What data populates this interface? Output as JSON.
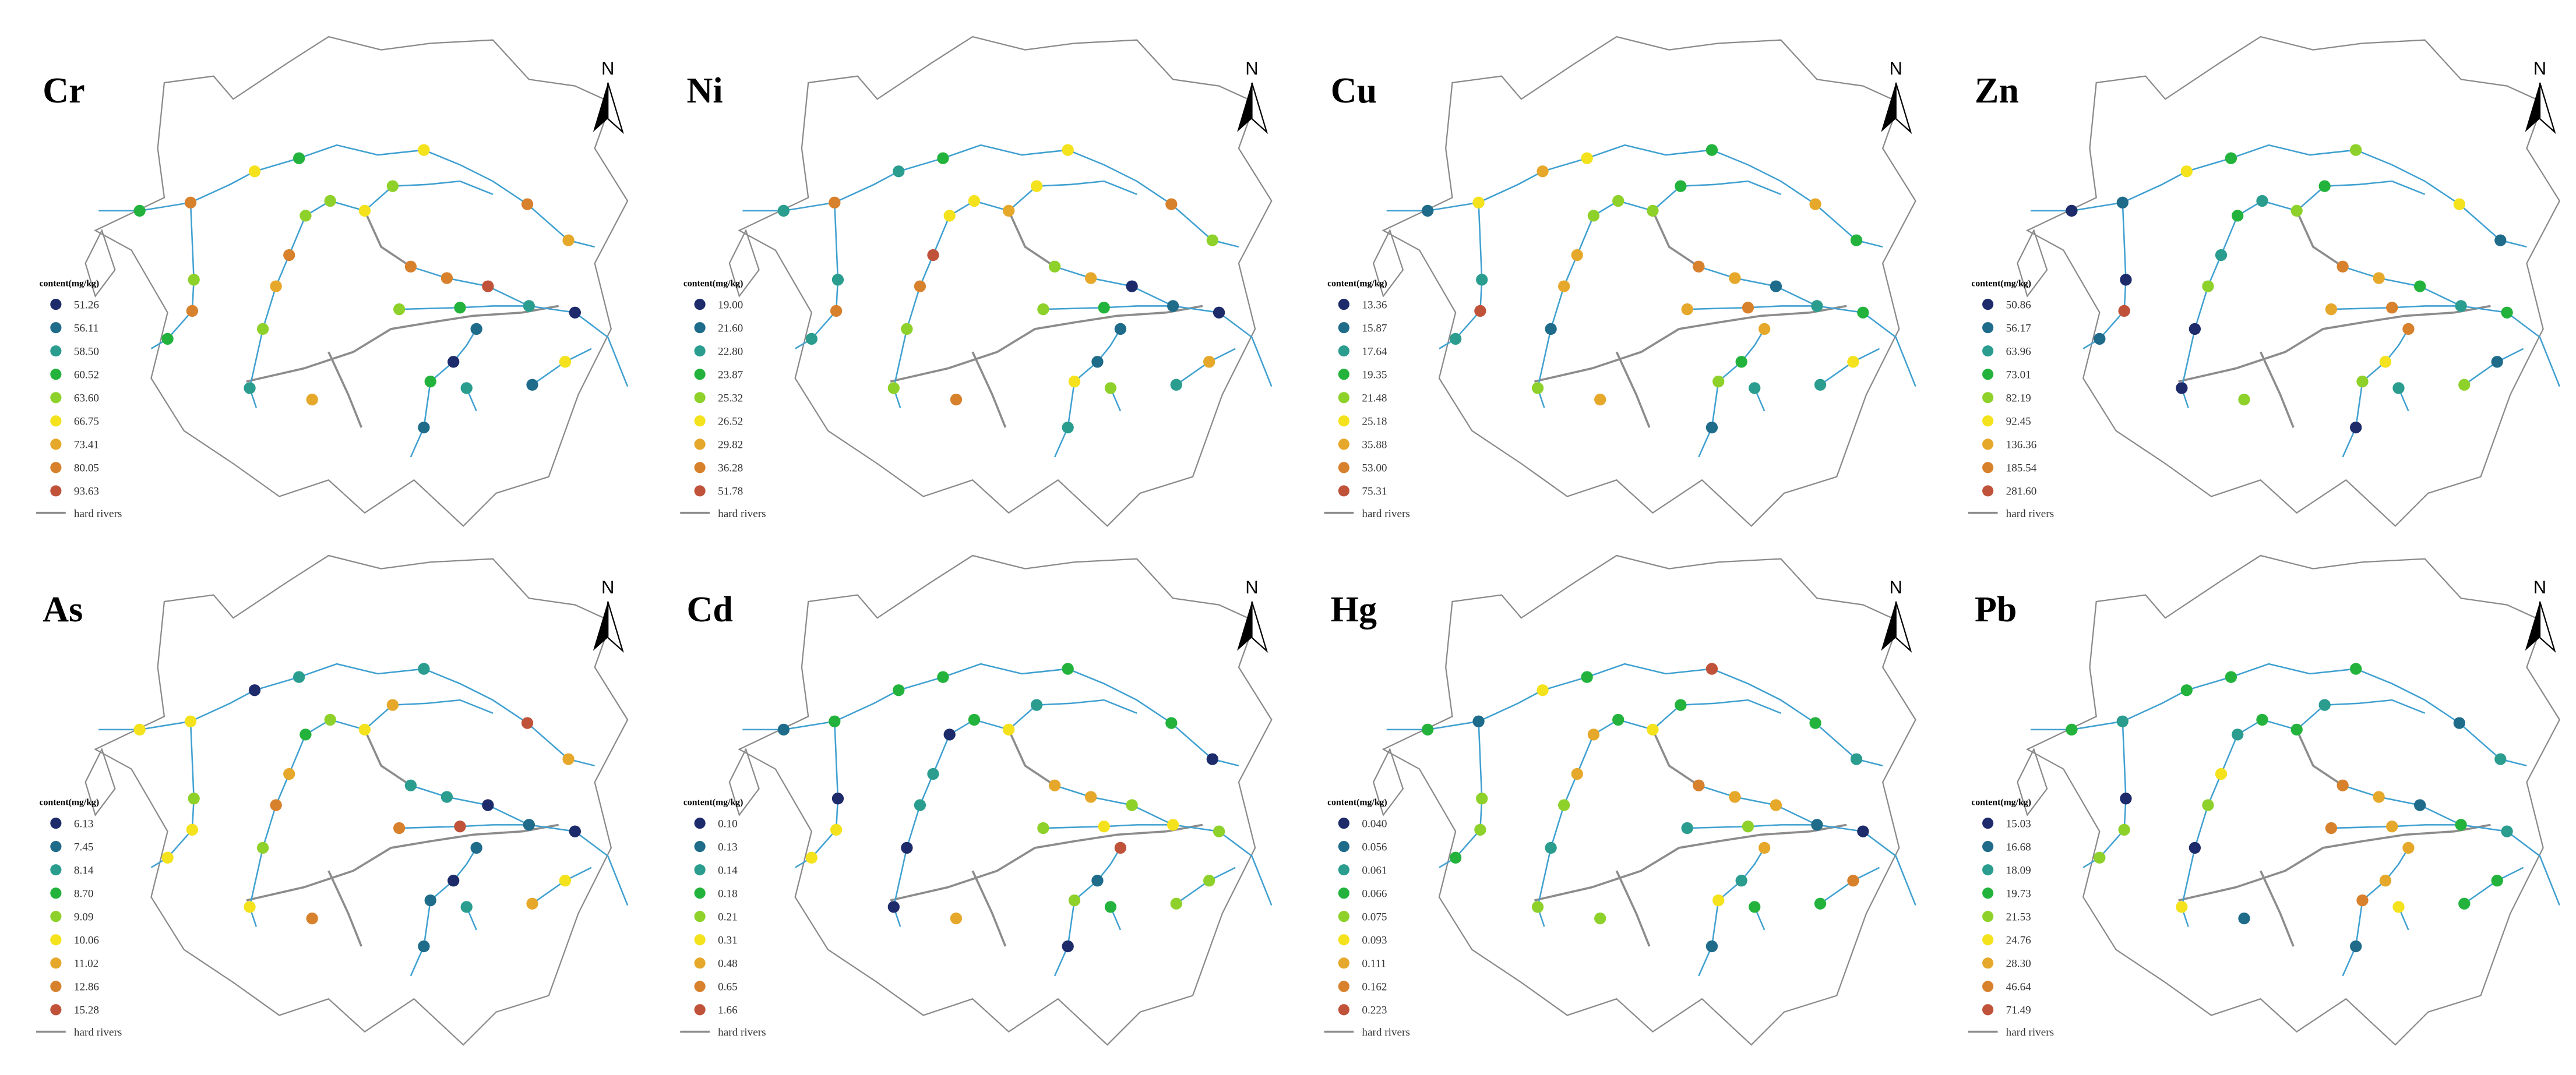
{
  "legend_title": "content(mg/kg)",
  "north_label": "N",
  "river_label": "hard rivers",
  "class_colors": [
    "#1d2b6b",
    "#1f6b8a",
    "#2a9d8f",
    "#23b33c",
    "#8ed12b",
    "#f4e21c",
    "#e6a82b",
    "#d8812c",
    "#c0523a"
  ],
  "panels": [
    {
      "title": "Cr",
      "legend": [
        "51.26",
        "56.11",
        "58.50",
        "60.52",
        "63.60",
        "66.75",
        "73.41",
        "80.05",
        "93.63"
      ],
      "point_classes": [
        5,
        3,
        5,
        3,
        7,
        4,
        4,
        5,
        7,
        6,
        4,
        7,
        6,
        4,
        2,
        4,
        7,
        3,
        7,
        7,
        8,
        4,
        3,
        2,
        0,
        1,
        0,
        3,
        1,
        2,
        1,
        5,
        6
      ]
    },
    {
      "title": "Ni",
      "legend": [
        "19.00",
        "21.60",
        "22.80",
        "23.87",
        "25.32",
        "26.52",
        "29.82",
        "36.28",
        "51.78"
      ],
      "point_classes": [
        2,
        3,
        5,
        2,
        7,
        5,
        5,
        6,
        7,
        4,
        5,
        8,
        7,
        4,
        4,
        2,
        7,
        2,
        4,
        6,
        0,
        4,
        3,
        1,
        0,
        1,
        1,
        5,
        2,
        4,
        2,
        6,
        7
      ]
    },
    {
      "title": "Cu",
      "legend": [
        "13.36",
        "15.87",
        "17.64",
        "19.35",
        "21.48",
        "25.18",
        "35.88",
        "53.00",
        "75.31"
      ],
      "point_classes": [
        6,
        5,
        3,
        1,
        5,
        4,
        3,
        4,
        6,
        3,
        4,
        6,
        6,
        1,
        4,
        2,
        8,
        2,
        7,
        6,
        1,
        6,
        7,
        2,
        3,
        6,
        3,
        4,
        1,
        2,
        2,
        5,
        6
      ]
    },
    {
      "title": "Zn",
      "legend": [
        "50.86",
        "56.17",
        "63.96",
        "73.01",
        "82.19",
        "92.45",
        "136.36",
        "185.54",
        "281.60"
      ],
      "point_classes": [
        5,
        3,
        4,
        0,
        1,
        2,
        3,
        4,
        5,
        1,
        3,
        2,
        4,
        0,
        0,
        0,
        8,
        1,
        7,
        6,
        3,
        6,
        7,
        2,
        3,
        7,
        5,
        4,
        0,
        2,
        4,
        1,
        4
      ]
    },
    {
      "title": "As",
      "legend": [
        "6.13",
        "7.45",
        "8.14",
        "8.70",
        "9.09",
        "10.06",
        "11.02",
        "12.86",
        "15.28"
      ],
      "point_classes": [
        0,
        2,
        2,
        5,
        5,
        4,
        6,
        5,
        8,
        6,
        3,
        6,
        7,
        4,
        5,
        4,
        5,
        5,
        2,
        2,
        0,
        7,
        8,
        1,
        0,
        1,
        0,
        1,
        1,
        2,
        6,
        5,
        7
      ]
    },
    {
      "title": "Cd",
      "legend": [
        "0.10",
        "0.13",
        "0.14",
        "0.18",
        "0.21",
        "0.31",
        "0.48",
        "0.65",
        "1.66"
      ],
      "point_classes": [
        3,
        3,
        3,
        1,
        3,
        3,
        2,
        5,
        3,
        0,
        0,
        2,
        2,
        0,
        0,
        0,
        5,
        5,
        6,
        6,
        4,
        4,
        5,
        5,
        4,
        8,
        1,
        4,
        0,
        3,
        4,
        4,
        6
      ]
    },
    {
      "title": "Hg",
      "legend": [
        "0.040",
        "0.056",
        "0.061",
        "0.066",
        "0.075",
        "0.093",
        "0.111",
        "0.162",
        "0.223"
      ],
      "point_classes": [
        5,
        3,
        8,
        3,
        1,
        3,
        3,
        5,
        3,
        2,
        6,
        6,
        4,
        2,
        4,
        4,
        4,
        3,
        7,
        6,
        6,
        2,
        4,
        1,
        0,
        6,
        2,
        5,
        1,
        3,
        3,
        7,
        4
      ]
    },
    {
      "title": "Pb",
      "legend": [
        "15.03",
        "16.68",
        "18.09",
        "19.73",
        "21.53",
        "24.76",
        "28.30",
        "46.64",
        "71.49"
      ],
      "point_classes": [
        3,
        3,
        3,
        3,
        2,
        3,
        2,
        3,
        1,
        2,
        2,
        5,
        4,
        0,
        5,
        0,
        4,
        4,
        7,
        6,
        1,
        7,
        6,
        3,
        2,
        6,
        6,
        7,
        1,
        5,
        3,
        3,
        1
      ]
    }
  ]
}
